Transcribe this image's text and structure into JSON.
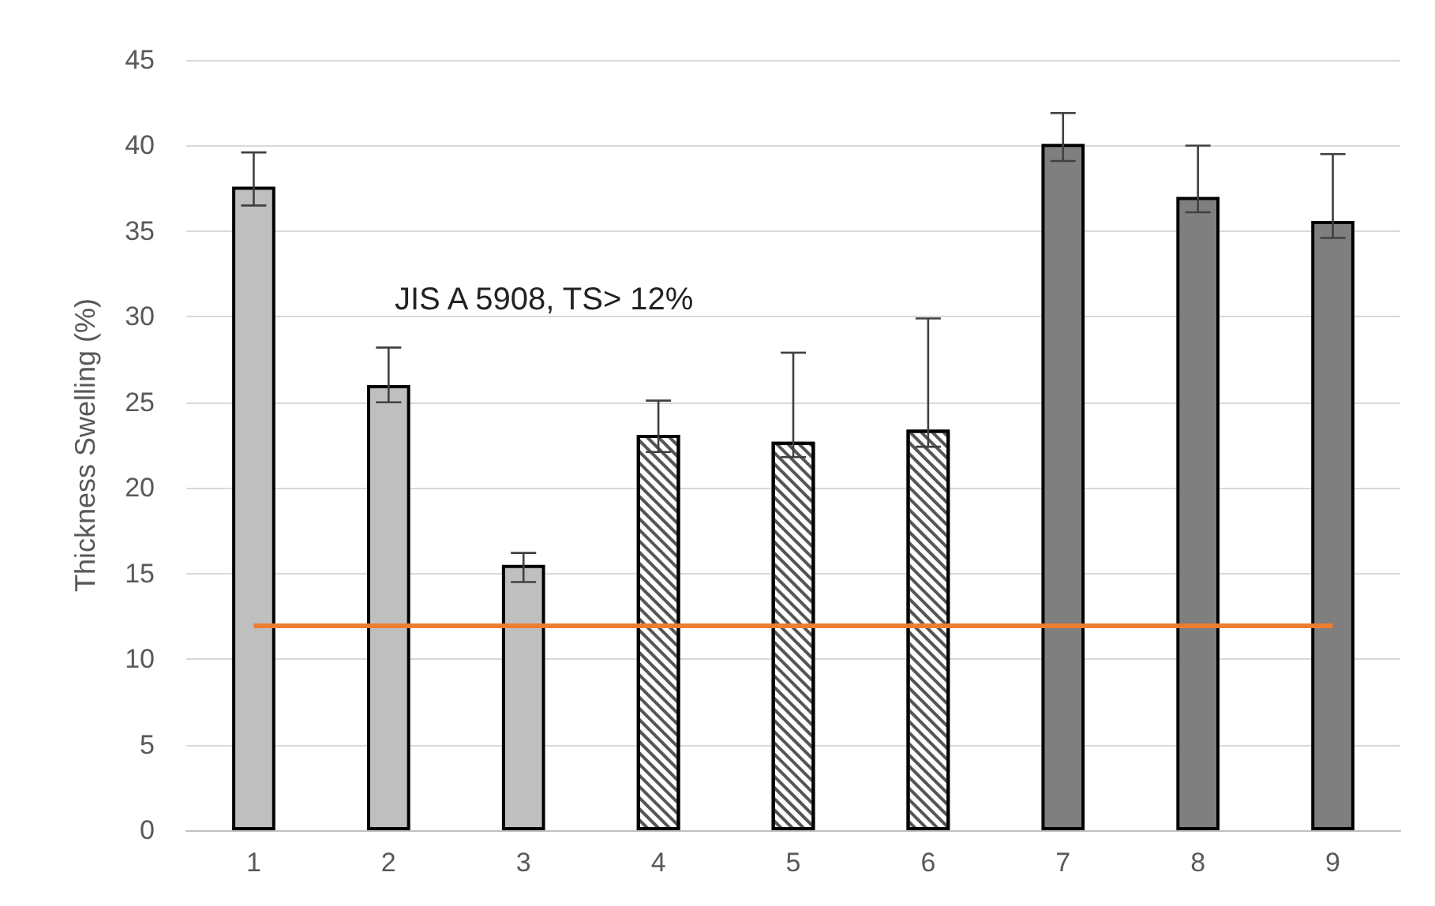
{
  "chart_data": {
    "type": "bar",
    "ylabel": "Thickness Swelling (%)",
    "categories": [
      "1",
      "2",
      "3",
      "4",
      "5",
      "6",
      "7",
      "8",
      "9"
    ],
    "values": [
      37.6,
      26.0,
      15.5,
      23.1,
      22.7,
      23.4,
      40.1,
      37.0,
      35.6
    ],
    "colors": [
      "#bfbfbf",
      "#bfbfbf",
      "#bfbfbf",
      "#ffffff",
      "#ffffff",
      "#ffffff",
      "#7f7f7f",
      "#7f7f7f",
      "#7f7f7f"
    ],
    "errors": [
      [
        36.5,
        39.6
      ],
      [
        25.0,
        28.2
      ],
      [
        14.5,
        16.2
      ],
      [
        22.1,
        25.1
      ],
      [
        21.8,
        27.9
      ],
      [
        22.4,
        29.9
      ],
      [
        39.1,
        41.9
      ],
      [
        36.1,
        40.0
      ],
      [
        34.6,
        39.5
      ]
    ],
    "ylim": [
      0,
      45
    ],
    "yticks": [
      0,
      5,
      10,
      15,
      20,
      25,
      30,
      35,
      40,
      45
    ],
    "grid": "y",
    "annotations": [
      "JIS A 5908, TS> 12%"
    ],
    "ref_lines": [
      {
        "axis": "y",
        "value": 12,
        "color": "#ed7d31"
      }
    ]
  }
}
